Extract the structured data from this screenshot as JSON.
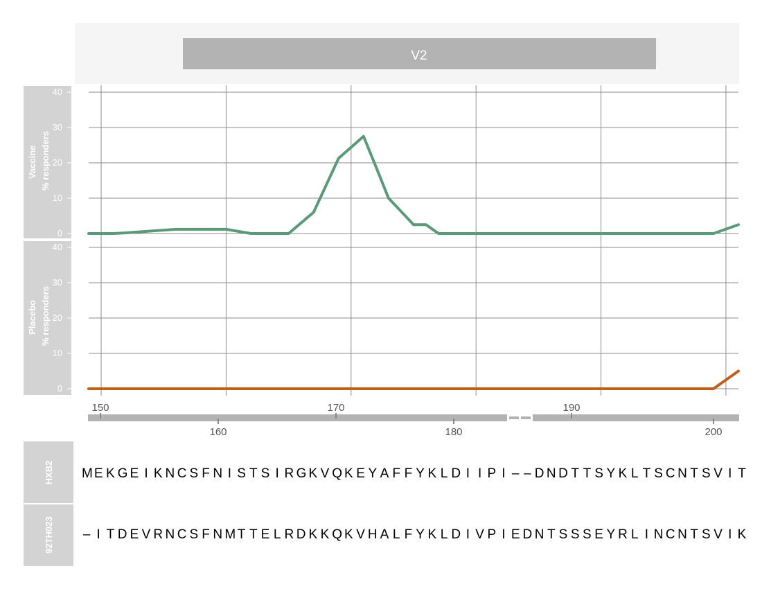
{
  "region": {
    "label": "V2"
  },
  "colors": {
    "vaccine": "#5a9a78",
    "placebo": "#c0601c",
    "panel_bg": "#d3d3d3",
    "header_bg": "#f5f5f5",
    "bar": "#b3b3b3",
    "grid": "#8c8c8c"
  },
  "chart_data": {
    "type": "line",
    "x_scale_ticks": [
      150,
      160,
      170,
      180,
      190,
      200
    ],
    "alignment_ticks_top": [
      "150",
      "170",
      "190"
    ],
    "alignment_ticks_bottom": [
      "160",
      "180",
      "200"
    ],
    "xlim": [
      149,
      201
    ],
    "panels": [
      {
        "label_line1": "Vaccine",
        "label_line2": "% responders",
        "ylim": [
          0,
          40
        ],
        "yticks": [
          "0",
          "10",
          "20",
          "30",
          "40"
        ],
        "series": {
          "x": [
            149,
            151,
            152,
            154,
            156,
            158,
            160,
            162,
            163,
            164,
            165,
            167,
            169,
            170,
            171,
            172,
            173,
            174,
            175,
            176,
            177,
            178,
            179,
            180,
            181,
            182,
            183,
            186,
            190,
            195,
            199,
            201
          ],
          "y": [
            0,
            0,
            0.2,
            0.7,
            1.2,
            1.2,
            1.2,
            0,
            0,
            0,
            0,
            6,
            21.3,
            24.4,
            27.5,
            18.8,
            10,
            6.25,
            2.5,
            2.5,
            0,
            0,
            0,
            0,
            0,
            0,
            0,
            0,
            0,
            0,
            0,
            2.5
          ]
        }
      },
      {
        "label_line1": "Placebo",
        "label_line2": "% responders",
        "ylim": [
          0,
          40
        ],
        "yticks": [
          "0",
          "10",
          "20",
          "30",
          "40"
        ],
        "series": {
          "x": [
            149,
            199,
            201
          ],
          "y": [
            0,
            0,
            5
          ]
        }
      }
    ]
  },
  "sequences": [
    {
      "name": "HXB2",
      "residues": "MEKGEIKNCSFNISTSIRGKVQKEYAFFYKLDIIPI--DNDTTSYKLTSCNTSVIT"
    },
    {
      "name": "92TH023",
      "residues": "-ITDEVRNCSFNMTTELRDKKQKVHALFYKLDIVPIEDNTSSSEYRLINCNTSVIK"
    }
  ]
}
